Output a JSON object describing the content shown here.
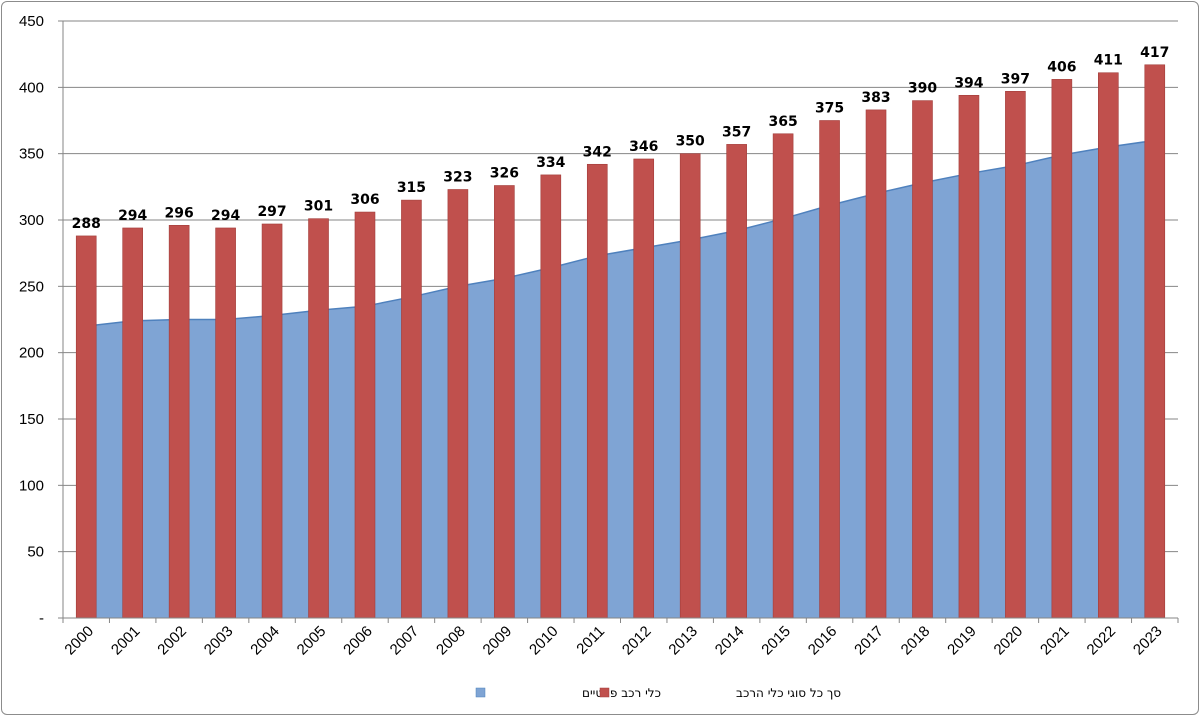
{
  "chart_data": {
    "type": "bar",
    "title": "",
    "xlabel": "",
    "ylabel": "",
    "ylim": [
      0,
      450
    ],
    "yticks": [
      0,
      50,
      100,
      150,
      200,
      250,
      300,
      350,
      400,
      450
    ],
    "ytick_labels": [
      "-",
      "50",
      "100",
      "150",
      "200",
      "250",
      "300",
      "350",
      "400",
      "450"
    ],
    "grid": true,
    "legend_position": "bottom",
    "categories": [
      "2000",
      "2001",
      "2002",
      "2003",
      "2004",
      "2005",
      "2006",
      "2007",
      "2008",
      "2009",
      "2010",
      "2011",
      "2012",
      "2013",
      "2014",
      "2015",
      "2016",
      "2017",
      "2018",
      "2019",
      "2020",
      "2021",
      "2022",
      "2023"
    ],
    "series": [
      {
        "name": "כלי רכב פרטיים",
        "type": "area",
        "color": "#7fa4d4",
        "values": [
          220,
          224,
          225,
          225,
          228,
          232,
          235,
          242,
          250,
          256,
          264,
          273,
          279,
          285,
          292,
          301,
          311,
          320,
          328,
          335,
          341,
          349,
          355,
          360
        ]
      },
      {
        "name": "סך כל סוגי כלי הרכב",
        "type": "bar",
        "color": "#c0504d",
        "values": [
          288,
          294,
          296,
          294,
          297,
          301,
          306,
          315,
          323,
          326,
          334,
          342,
          346,
          350,
          357,
          365,
          375,
          383,
          390,
          394,
          397,
          406,
          411,
          417
        ],
        "data_labels": [
          "288",
          "294",
          "296",
          "294",
          "297",
          "301",
          "306",
          "315",
          "323",
          "326",
          "334",
          "342",
          "346",
          "350",
          "357",
          "365",
          "375",
          "383",
          "390",
          "394",
          "397",
          "406",
          "411",
          "417"
        ]
      }
    ]
  }
}
